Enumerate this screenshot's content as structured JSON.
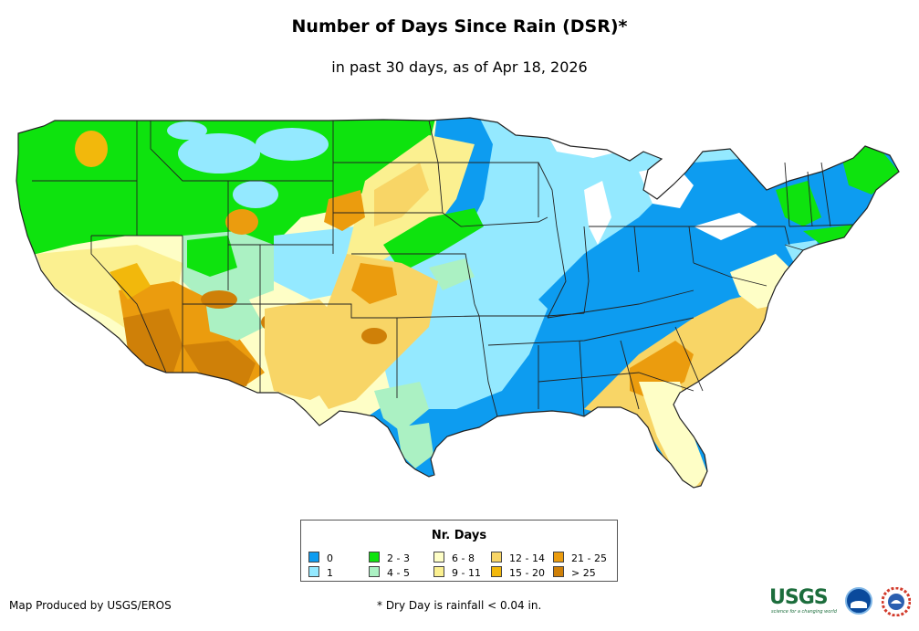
{
  "title": "Number of Days Since Rain (DSR)*",
  "subtitle": "in past 30 days, as of Apr 18, 2026",
  "legend": {
    "title": "Nr. Days",
    "items": [
      {
        "label": "0",
        "color": "#0d9cf0"
      },
      {
        "label": "1",
        "color": "#94e9ff"
      },
      {
        "label": "2 - 3",
        "color": "#0ee30e"
      },
      {
        "label": "4 - 5",
        "color": "#abf1c3"
      },
      {
        "label": "6 - 8",
        "color": "#fefec6"
      },
      {
        "label": "9 - 11",
        "color": "#fbf090"
      },
      {
        "label": "12 - 14",
        "color": "#f8d566"
      },
      {
        "label": "15 - 20",
        "color": "#f2b80c"
      },
      {
        "label": "21 - 25",
        "color": "#eb9c0e"
      },
      {
        "label": "> 25",
        "color": "#cf8008"
      }
    ]
  },
  "credit": "Map Produced by USGS/EROS",
  "footnote": "* Dry Day is rainfall < 0.04 in.",
  "logos": {
    "usgs": "USGS",
    "usgs_tagline": "science for a changing world",
    "noaa": "NOAA",
    "nws": "National Weather Service"
  }
}
